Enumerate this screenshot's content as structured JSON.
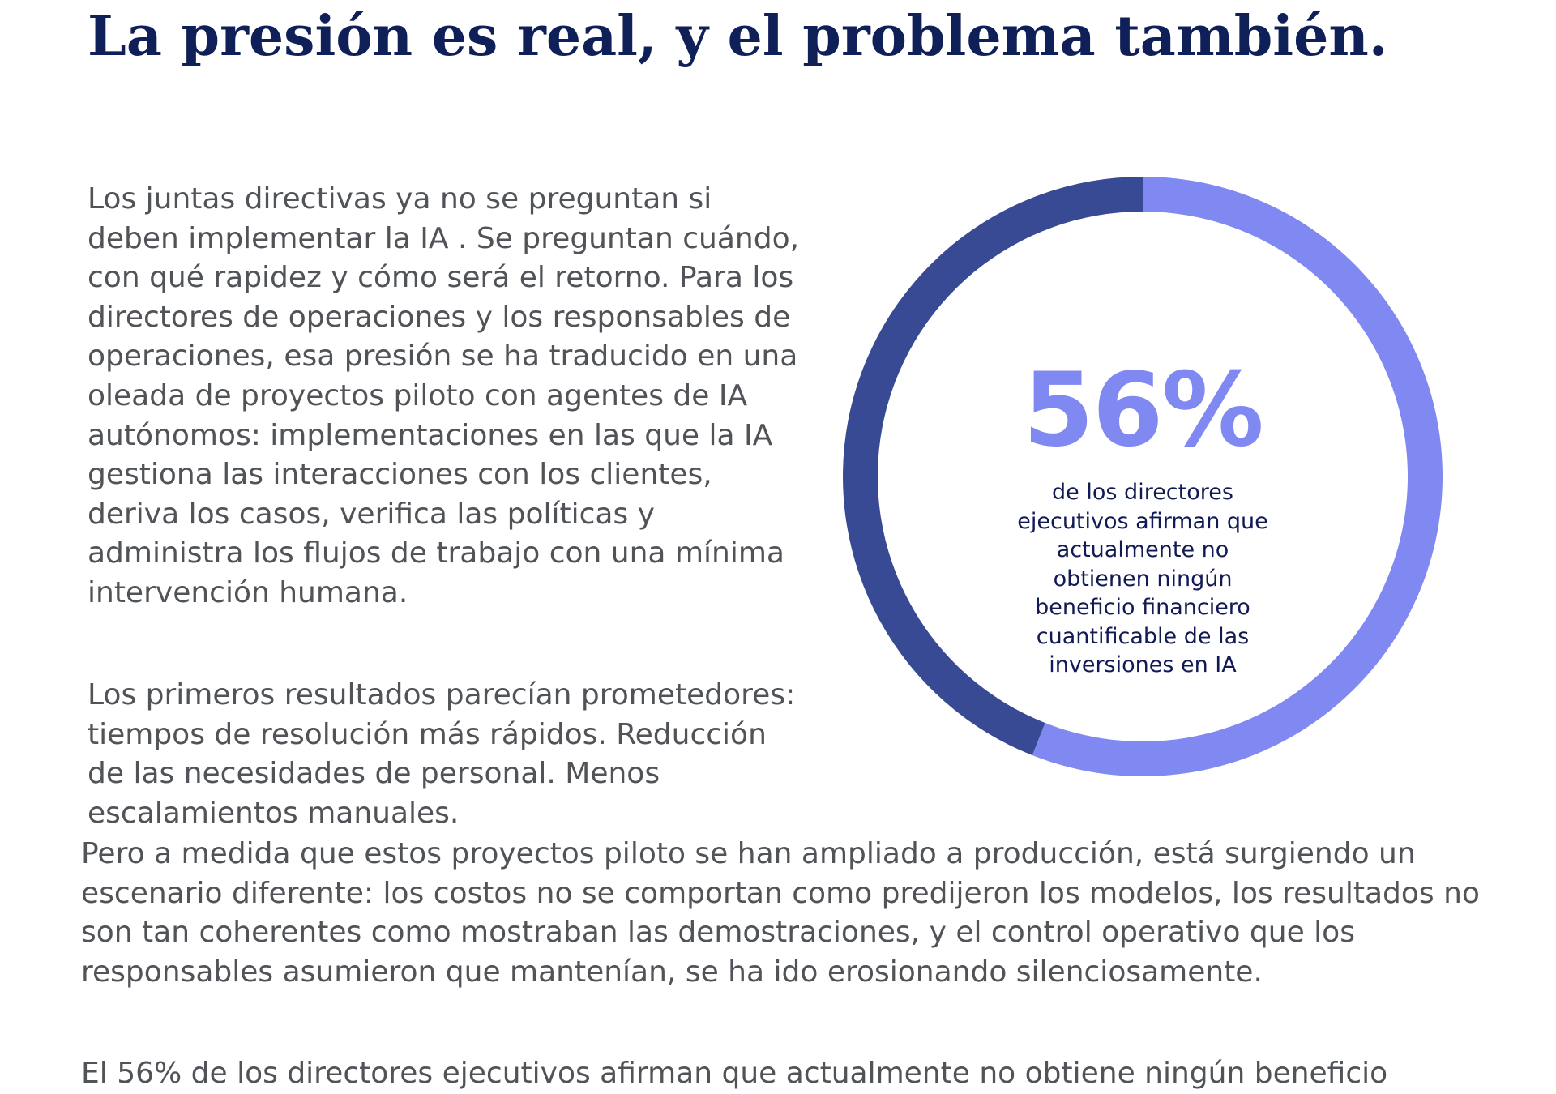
{
  "title": "La presión es real, y el problema también.",
  "paragraphs": {
    "p1": "Los juntas directivas  ya no se preguntan si deben implementar la IA . Se preguntan cuándo, con qué rapidez y cómo será el retorno. Para los directores de operaciones y los responsables de operaciones, esa presión se ha traducido en una oleada de proyectos piloto con agentes de IA autónomos: implementaciones en las que la IA gestiona las interacciones con los clientes, deriva los casos, verifica las políticas y administra los flujos de trabajo con una mínima intervención humana.",
    "p2": "Los primeros resultados parecían prometedores: tiempos de resolución más rápidos. Reducción de las necesidades de personal. Menos escalamientos manuales.",
    "p3": "Pero a medida que estos proyectos piloto se han ampliado a producción, está surgiendo un escenario diferente: los costos no se comportan como predijeron los modelos, los resultados no son tan coherentes como mostraban las demostraciones, y el control operativo que los responsables asumieron que mantenían, se ha ido erosionando silenciosamente.",
    "p4": "El 56% de los directores ejecutivos afirman que actualmente no obtiene ningún beneficio"
  },
  "stat": {
    "value": "56%",
    "caption": "de los directores ejecutivos afirman que actualmente no obtienen ningún beneficio financiero cuantificable de las inversiones en IA",
    "fraction": 0.56,
    "color_value": "#8088f2",
    "color_rest": "#394a94"
  },
  "chart_data": {
    "type": "pie",
    "categories": [
      "",
      ""
    ],
    "values": [
      56,
      44
    ],
    "title": "",
    "colors": [
      "#8088f2",
      "#394a94"
    ]
  }
}
